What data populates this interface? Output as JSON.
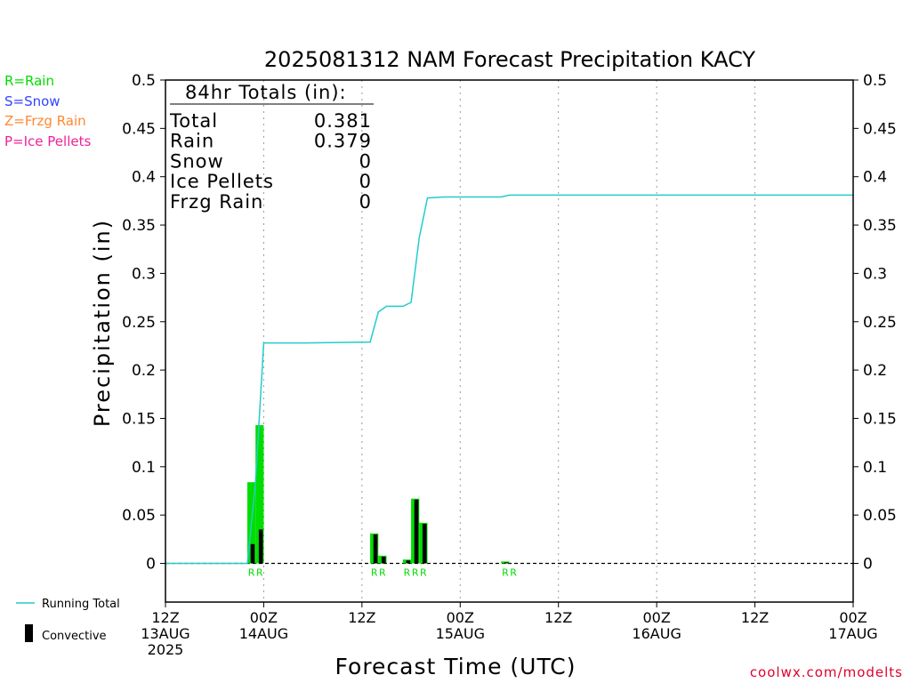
{
  "colors": {
    "rain": "#00dd00",
    "snow": "#3344ff",
    "frzg_rain": "#ff8833",
    "ice_pellets": "#ee2299",
    "running_total": "#22cccc",
    "convective": "#000000",
    "credit": "#e0002c",
    "grid": "#999999"
  },
  "legend_left": {
    "rain": "R=Rain",
    "snow": "S=Snow",
    "frzg": "Z=Frzg Rain",
    "ice": "P=Ice Pellets"
  },
  "legend_bottom": {
    "running_total": "Running Total",
    "convective": "Convective"
  },
  "totals": {
    "header": "84hr Totals (in):",
    "rows": [
      {
        "label": "Total",
        "value": "0.381"
      },
      {
        "label": "Rain",
        "value": "0.379"
      },
      {
        "label": "Snow",
        "value": "0"
      },
      {
        "label": "Ice Pellets",
        "value": "0"
      },
      {
        "label": "Frzg Rain",
        "value": "0"
      }
    ]
  },
  "credit": "coolwx.com/modelts",
  "chart_data": {
    "type": "bar",
    "title": "2025081312 NAM Forecast Precipitation KACY",
    "xlabel": "Forecast Time (UTC)",
    "ylabel": "Precipitation (in)",
    "x_unit": "forecast hour",
    "xlim": [
      0,
      84
    ],
    "ylim": [
      -0.04,
      0.5
    ],
    "yticks": [
      0,
      0.05,
      0.1,
      0.15,
      0.2,
      0.25,
      0.3,
      0.35,
      0.4,
      0.45,
      0.5
    ],
    "ytick_labels": [
      "0",
      "0.05",
      "0.1",
      "0.15",
      "0.2",
      "0.25",
      "0.3",
      "0.35",
      "0.4",
      "0.45",
      "0.5"
    ],
    "xticks": [
      {
        "hour": 0,
        "lines": [
          "12Z",
          "13AUG",
          "2025"
        ]
      },
      {
        "hour": 12,
        "lines": [
          "00Z",
          "14AUG"
        ]
      },
      {
        "hour": 24,
        "lines": [
          "12Z"
        ]
      },
      {
        "hour": 36,
        "lines": [
          "00Z",
          "15AUG"
        ]
      },
      {
        "hour": 48,
        "lines": [
          "12Z"
        ]
      },
      {
        "hour": 60,
        "lines": [
          "00Z",
          "16AUG"
        ]
      },
      {
        "hour": 72,
        "lines": [
          "12Z"
        ]
      },
      {
        "hour": 84,
        "lines": [
          "00Z",
          "17AUG"
        ]
      }
    ],
    "grid_vertical": true,
    "precip_bars": [
      {
        "hour": 11,
        "total": 0.084,
        "convective": 0.02
      },
      {
        "hour": 12,
        "total": 0.143,
        "convective": 0.035
      },
      {
        "hour": 26,
        "total": 0.031,
        "convective": 0.03
      },
      {
        "hour": 27,
        "total": 0.008,
        "convective": 0.007
      },
      {
        "hour": 30,
        "total": 0.004,
        "convective": 0.003
      },
      {
        "hour": 31,
        "total": 0.067,
        "convective": 0.066
      },
      {
        "hour": 32,
        "total": 0.042,
        "convective": 0.041
      },
      {
        "hour": 42,
        "total": 0.002,
        "convective": 0.001
      }
    ],
    "type_labels": [
      {
        "hour": 11,
        "text": "R"
      },
      {
        "hour": 12,
        "text": "R"
      },
      {
        "hour": 26,
        "text": "R"
      },
      {
        "hour": 27,
        "text": "R"
      },
      {
        "hour": 30,
        "text": "R"
      },
      {
        "hour": 31,
        "text": "R"
      },
      {
        "hour": 32,
        "text": "R"
      },
      {
        "hour": 42,
        "text": "R"
      },
      {
        "hour": 43,
        "text": "R"
      }
    ],
    "running_total": {
      "name": "Running Total",
      "points": [
        [
          0,
          0
        ],
        [
          9,
          0
        ],
        [
          10,
          0
        ],
        [
          11,
          0.084
        ],
        [
          12,
          0.228
        ],
        [
          17,
          0.228
        ],
        [
          25,
          0.229
        ],
        [
          26,
          0.26
        ],
        [
          27,
          0.266
        ],
        [
          29,
          0.266
        ],
        [
          30,
          0.27
        ],
        [
          31,
          0.337
        ],
        [
          32,
          0.378
        ],
        [
          34,
          0.379
        ],
        [
          41,
          0.379
        ],
        [
          42,
          0.381
        ],
        [
          84,
          0.381
        ]
      ]
    }
  }
}
